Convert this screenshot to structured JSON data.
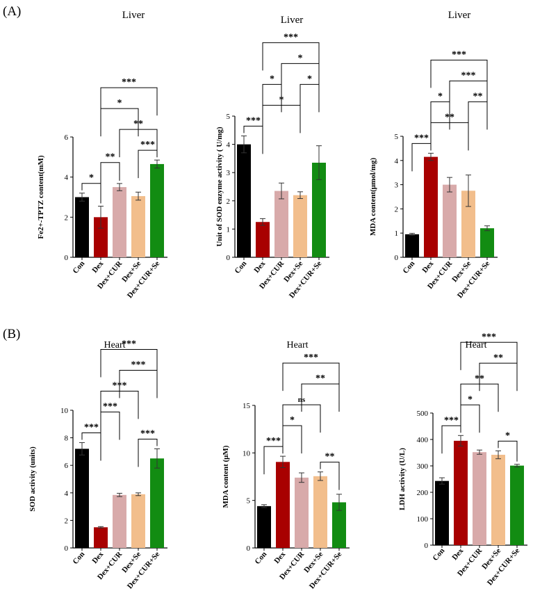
{
  "panel_labels": [
    "(A)",
    "(B)"
  ],
  "palette": {
    "Con": "#000000",
    "Dex": "#a80000",
    "Dex+CUR": "#d8aaaa",
    "Dex+Se": "#f2be8c",
    "Dex+CUR+Se": "#128c12"
  },
  "chart_data": [
    {
      "type": "bar",
      "title": "Liver",
      "ylabel": "Fe2+-TPTZ content(mM)",
      "categories": [
        "Con",
        "Dex",
        "Dex+CUR",
        "Dex+Se",
        "Dex+CUR+Se"
      ],
      "values": [
        3.0,
        2.0,
        3.5,
        3.05,
        4.65
      ],
      "errors": [
        0.2,
        0.55,
        0.18,
        0.2,
        0.2
      ],
      "ylim": [
        0,
        6
      ],
      "yticks": [
        0,
        2,
        4,
        6
      ],
      "significance": [
        {
          "from": 0,
          "to": 1,
          "label": "*"
        },
        {
          "from": 1,
          "to": 2,
          "label": "**"
        },
        {
          "from": 3,
          "to": 4,
          "label": "***"
        },
        {
          "from": 2,
          "to": 4,
          "label": "**"
        },
        {
          "from": 1,
          "to": 3,
          "label": "*"
        },
        {
          "from": 1,
          "to": 4,
          "label": "***"
        }
      ]
    },
    {
      "type": "bar",
      "title": "Liver",
      "ylabel": "Unit of SOD enzyme activity ( U/mg)",
      "categories": [
        "Con",
        "Dex",
        "Dex+CUR",
        "Dex+Se",
        "Dex+CUR+Se"
      ],
      "values": [
        4.0,
        1.25,
        2.35,
        2.2,
        3.35
      ],
      "errors": [
        0.3,
        0.12,
        0.28,
        0.12,
        0.6
      ],
      "ylim": [
        0,
        5
      ],
      "yticks": [
        0,
        1,
        2,
        3,
        4,
        5
      ],
      "significance": [
        {
          "from": 0,
          "to": 1,
          "label": "***"
        },
        {
          "from": 1,
          "to": 3,
          "label": "*"
        },
        {
          "from": 3,
          "to": 4,
          "label": "*"
        },
        {
          "from": 1,
          "to": 2,
          "label": "*"
        },
        {
          "from": 2,
          "to": 4,
          "label": "*"
        },
        {
          "from": 1,
          "to": 4,
          "label": "***"
        }
      ]
    },
    {
      "type": "bar",
      "title": "Liver",
      "ylabel": "MDA content(μmol/mg)",
      "categories": [
        "Con",
        "Dex",
        "Dex+CUR",
        "Dex+Se",
        "Dex+CUR+Se"
      ],
      "values": [
        0.95,
        4.15,
        3.0,
        2.75,
        1.2
      ],
      "errors": [
        0.04,
        0.15,
        0.3,
        0.65,
        0.1
      ],
      "ylim": [
        0,
        5
      ],
      "yticks": [
        0,
        1,
        2,
        3,
        4,
        5
      ],
      "significance": [
        {
          "from": 0,
          "to": 1,
          "label": "***"
        },
        {
          "from": 1,
          "to": 3,
          "label": "**"
        },
        {
          "from": 3,
          "to": 4,
          "label": "**"
        },
        {
          "from": 1,
          "to": 2,
          "label": "*"
        },
        {
          "from": 2,
          "to": 4,
          "label": "***"
        },
        {
          "from": 1,
          "to": 4,
          "label": "***"
        }
      ]
    },
    {
      "type": "bar",
      "title": "Heart",
      "ylabel": "SOD activity (units)",
      "categories": [
        "Con",
        "Dex",
        "Dex+CUR",
        "Dex+Se",
        "Dex+CUR+Se"
      ],
      "values": [
        7.2,
        1.5,
        3.85,
        3.9,
        6.5
      ],
      "errors": [
        0.45,
        0.05,
        0.12,
        0.1,
        0.7
      ],
      "ylim": [
        0,
        10
      ],
      "yticks": [
        0,
        2,
        4,
        6,
        8,
        10
      ],
      "significance": [
        {
          "from": 0,
          "to": 1,
          "label": "***"
        },
        {
          "from": 1,
          "to": 2,
          "label": "***"
        },
        {
          "from": 3,
          "to": 4,
          "label": "***"
        },
        {
          "from": 1,
          "to": 3,
          "label": "***"
        },
        {
          "from": 2,
          "to": 4,
          "label": "***"
        },
        {
          "from": 1,
          "to": 4,
          "label": "***"
        }
      ]
    },
    {
      "type": "bar",
      "title": "Heart",
      "ylabel": "MDA content (μM)",
      "categories": [
        "Con",
        "Dex",
        "Dex+CUR",
        "Dex+Se",
        "Dex+CUR+Se"
      ],
      "values": [
        4.4,
        9.05,
        7.4,
        7.55,
        4.8
      ],
      "errors": [
        0.15,
        0.6,
        0.5,
        0.45,
        0.85
      ],
      "ylim": [
        0,
        15
      ],
      "yticks": [
        0,
        5,
        10,
        15
      ],
      "significance": [
        {
          "from": 0,
          "to": 1,
          "label": "***"
        },
        {
          "from": 1,
          "to": 2,
          "label": "*"
        },
        {
          "from": 3,
          "to": 4,
          "label": "**"
        },
        {
          "from": 1,
          "to": 3,
          "label": "ns"
        },
        {
          "from": 2,
          "to": 4,
          "label": "**"
        },
        {
          "from": 1,
          "to": 4,
          "label": "***"
        }
      ]
    },
    {
      "type": "bar",
      "title": "Heart",
      "ylabel": "LDH activity (U/L)",
      "categories": [
        "Con",
        "Dex",
        "Dex+CUR",
        "Dex+Se",
        "Dex+CUR+Se"
      ],
      "values": [
        243,
        395,
        352,
        342,
        301
      ],
      "errors": [
        12,
        20,
        8,
        15,
        5
      ],
      "ylim": [
        0,
        500
      ],
      "yticks": [
        0,
        100,
        200,
        300,
        400,
        500
      ],
      "significance": [
        {
          "from": 0,
          "to": 1,
          "label": "***"
        },
        {
          "from": 1,
          "to": 2,
          "label": "*"
        },
        {
          "from": 3,
          "to": 4,
          "label": "*"
        },
        {
          "from": 1,
          "to": 3,
          "label": "**"
        },
        {
          "from": 2,
          "to": 4,
          "label": "**"
        },
        {
          "from": 1,
          "to": 4,
          "label": "***"
        }
      ]
    }
  ]
}
